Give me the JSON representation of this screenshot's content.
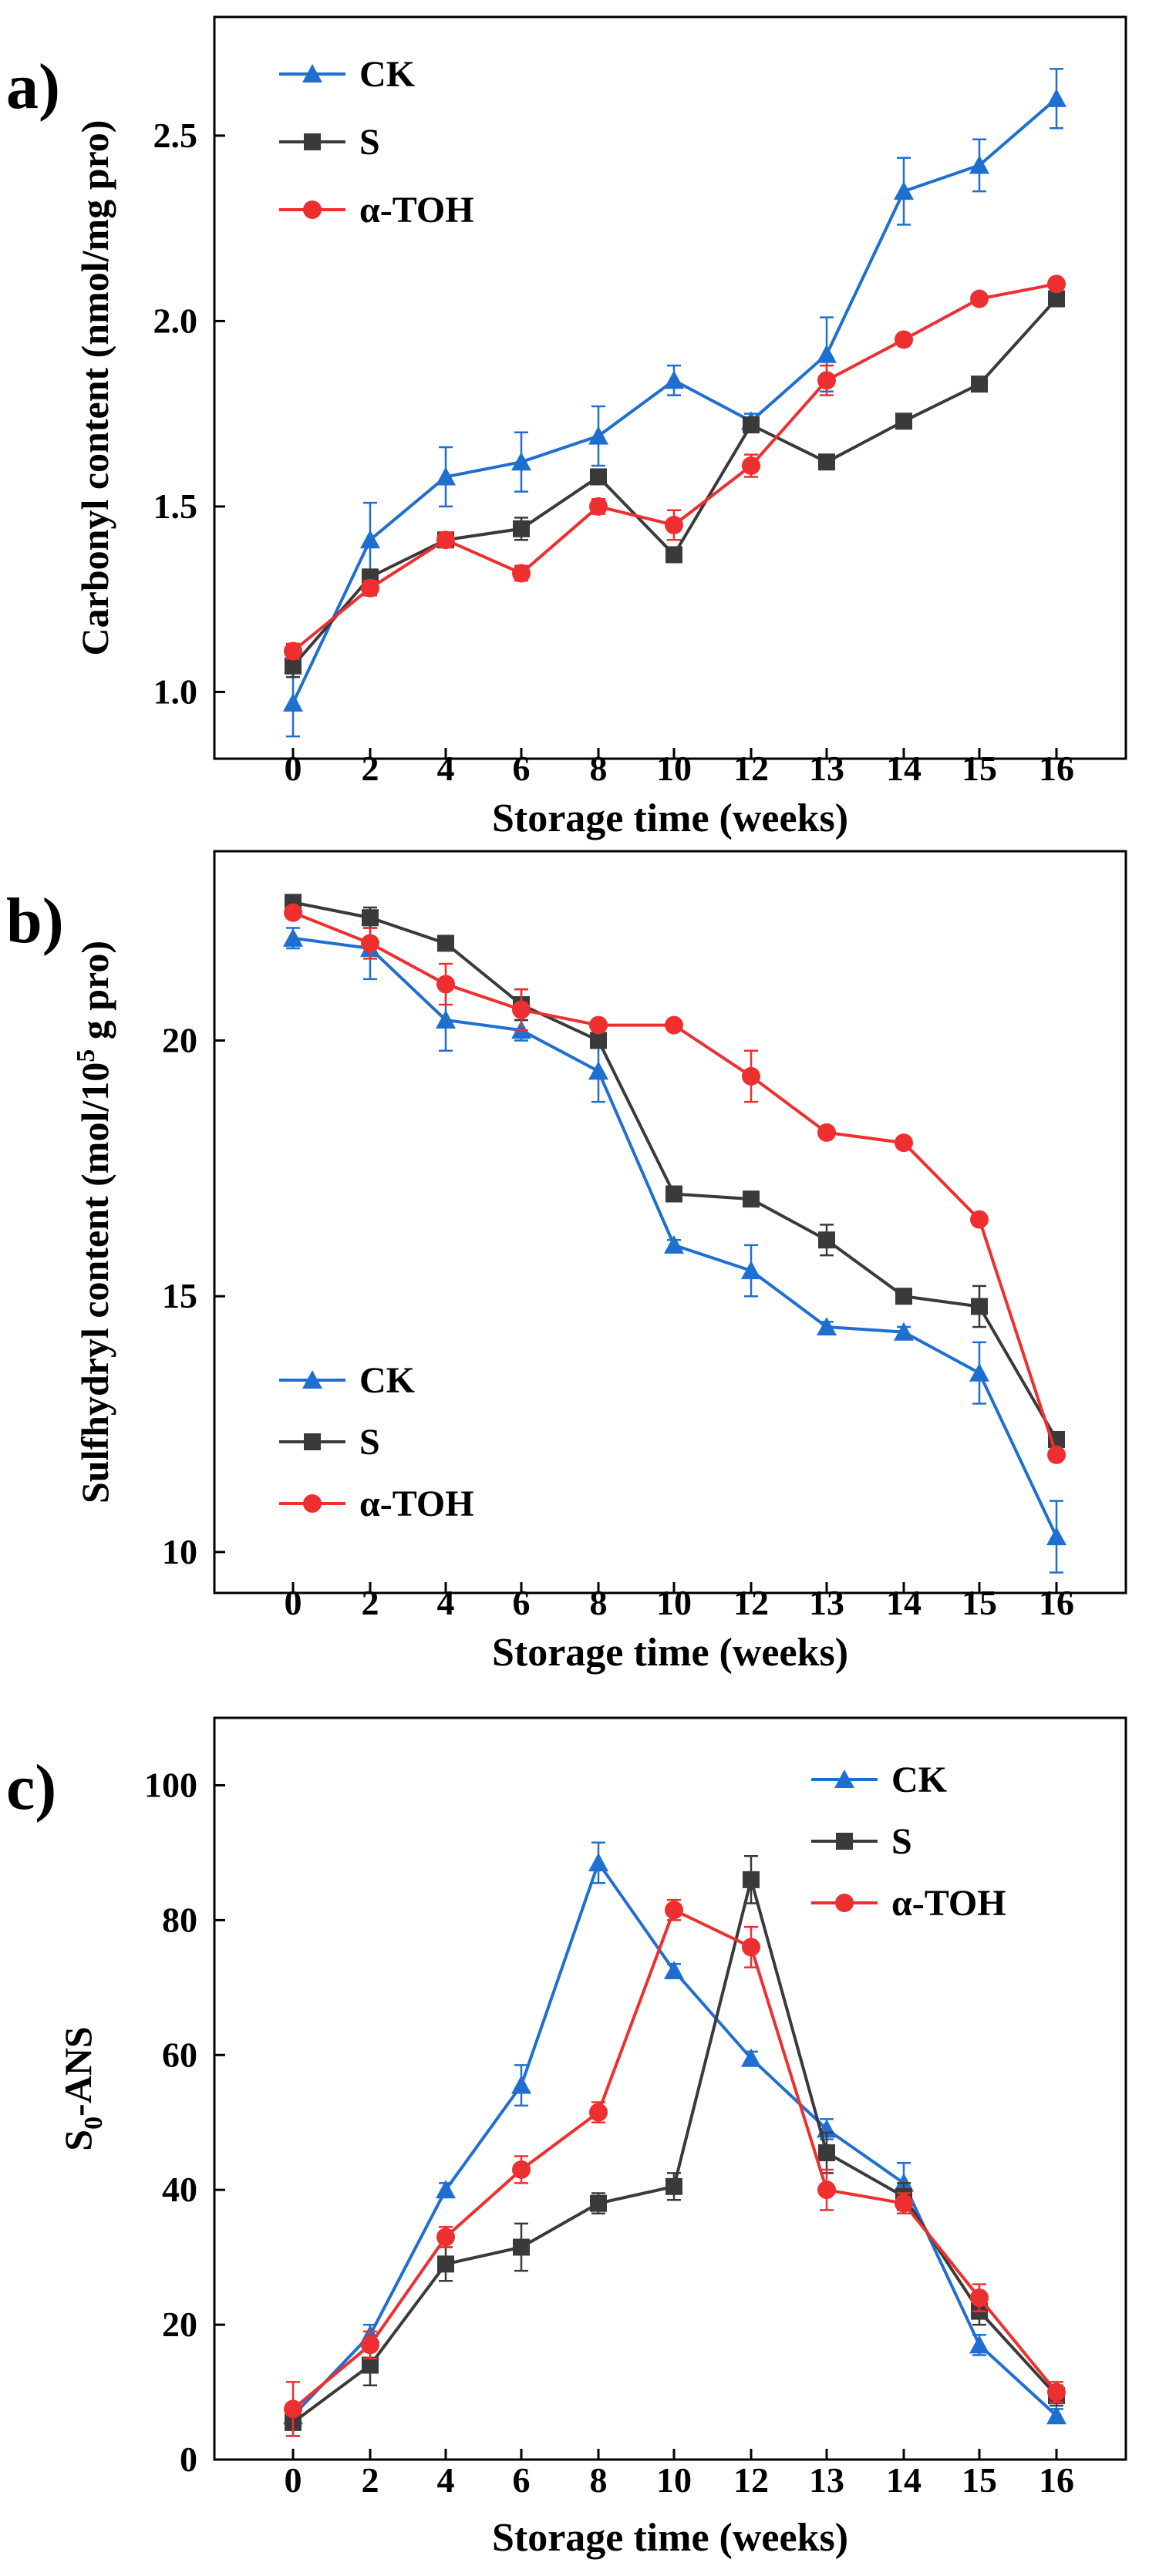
{
  "figure": {
    "colors": {
      "CK": "#1f6fd1",
      "S": "#3a3a3a",
      "a-TOH": "#ee2f2f"
    },
    "series_order": [
      "CK",
      "S",
      "α-TOH"
    ]
  },
  "chart_data": [
    {
      "panel_label": "a)",
      "type": "line",
      "x_ticks": [
        "0",
        "2",
        "4",
        "6",
        "8",
        "10",
        "12",
        "13",
        "14",
        "15",
        "16"
      ],
      "xlabel": "Storage time (weeks)",
      "ylabel": "Carbonyl content (nmol/mg pro)",
      "ylim": [
        0.82,
        2.82
      ],
      "y_ticks": [
        "1.0",
        "1.5",
        "2.0",
        "2.5"
      ],
      "legend_position": "top-left",
      "series": [
        {
          "name": "CK",
          "marker": "triangle",
          "color": "#1f6fd1",
          "values": [
            0.97,
            1.41,
            1.58,
            1.62,
            1.69,
            1.84,
            1.73,
            1.91,
            2.35,
            2.42,
            2.6
          ],
          "errors": [
            0.09,
            0.1,
            0.08,
            0.08,
            0.08,
            0.04,
            0.02,
            0.1,
            0.09,
            0.07,
            0.08
          ]
        },
        {
          "name": "S",
          "marker": "square",
          "color": "#3a3a3a",
          "values": [
            1.07,
            1.31,
            1.41,
            1.44,
            1.58,
            1.37,
            1.72,
            1.62,
            1.73,
            1.83,
            2.06
          ],
          "errors": [
            0.03,
            0.02,
            0.01,
            0.03,
            0.02,
            0.02,
            0.02,
            0.01,
            0.01,
            0.02,
            0.02
          ]
        },
        {
          "name": "α-TOH",
          "marker": "circle",
          "color": "#ee2f2f",
          "values": [
            1.11,
            1.28,
            1.41,
            1.32,
            1.5,
            1.45,
            1.61,
            1.84,
            1.95,
            2.06,
            2.1
          ],
          "errors": [
            0.02,
            0.02,
            0.02,
            0.02,
            0.02,
            0.04,
            0.03,
            0.04,
            0.01,
            0.01,
            0.01
          ]
        }
      ]
    },
    {
      "panel_label": "b)",
      "type": "line",
      "x_ticks": [
        "0",
        "2",
        "4",
        "6",
        "8",
        "10",
        "12",
        "13",
        "14",
        "15",
        "16"
      ],
      "xlabel": "Storage time (weeks)",
      "ylabel_prefix": "Sulfhydryl content (mol/10",
      "ylabel_sup": "5",
      "ylabel_suffix": " g pro)",
      "ylim": [
        9.2,
        23.7
      ],
      "y_ticks": [
        "10",
        "15",
        "20"
      ],
      "legend_position": "bottom-left",
      "series": [
        {
          "name": "CK",
          "marker": "triangle",
          "color": "#1f6fd1",
          "values": [
            22.0,
            21.8,
            20.4,
            20.2,
            19.4,
            16.0,
            15.5,
            14.4,
            14.3,
            13.5,
            10.3
          ],
          "errors": [
            0.2,
            0.6,
            0.6,
            0.2,
            0.6,
            0.1,
            0.5,
            0.1,
            0.1,
            0.6,
            0.7
          ]
        },
        {
          "name": "S",
          "marker": "square",
          "color": "#3a3a3a",
          "values": [
            22.7,
            22.4,
            21.9,
            20.7,
            20.0,
            17.0,
            16.9,
            16.1,
            15.0,
            14.8,
            12.2
          ],
          "errors": [
            0.1,
            0.2,
            0.1,
            0.3,
            0.1,
            0.1,
            0.1,
            0.3,
            0.1,
            0.4,
            0.1
          ]
        },
        {
          "name": "α-TOH",
          "marker": "circle",
          "color": "#ee2f2f",
          "values": [
            22.5,
            21.9,
            21.1,
            20.6,
            20.3,
            20.3,
            19.3,
            18.2,
            18.0,
            16.5,
            11.9
          ],
          "errors": [
            0.1,
            0.3,
            0.4,
            0.4,
            0.1,
            0.1,
            0.5,
            0.1,
            0.1,
            0.1,
            0.1
          ]
        }
      ]
    },
    {
      "panel_label": "c)",
      "type": "line",
      "x_ticks": [
        "0",
        "2",
        "4",
        "6",
        "8",
        "10",
        "12",
        "13",
        "14",
        "15",
        "16"
      ],
      "xlabel": "Storage time (weeks)",
      "ylabel_prefix": "S",
      "ylabel_sub": "0",
      "ylabel_suffix": "-ANS",
      "ylim": [
        0,
        110
      ],
      "y_ticks": [
        "0",
        "20",
        "40",
        "60",
        "80",
        "100"
      ],
      "legend_position": "top-right",
      "series": [
        {
          "name": "CK",
          "marker": "triangle",
          "color": "#1f6fd1",
          "values": [
            6.5,
            18.5,
            40.0,
            55.5,
            88.5,
            72.5,
            59.5,
            49.0,
            41.0,
            17.0,
            6.5
          ],
          "errors": [
            1.5,
            1.5,
            1.0,
            3.0,
            3.0,
            1.0,
            1.0,
            1.5,
            3.0,
            1.5,
            1.0
          ]
        },
        {
          "name": "S",
          "marker": "square",
          "color": "#3a3a3a",
          "values": [
            5.5,
            14.0,
            29.0,
            31.5,
            38.0,
            40.5,
            86.0,
            45.5,
            39.0,
            22.0,
            9.5
          ],
          "errors": [
            2.0,
            3.0,
            2.5,
            3.5,
            1.5,
            2.0,
            3.5,
            3.0,
            2.0,
            2.0,
            1.5
          ]
        },
        {
          "name": "α-TOH",
          "marker": "circle",
          "color": "#ee2f2f",
          "values": [
            7.5,
            17.0,
            33.0,
            43.0,
            51.5,
            81.5,
            76.0,
            40.0,
            38.0,
            24.0,
            10.0
          ],
          "errors": [
            4.0,
            2.0,
            1.5,
            2.0,
            1.5,
            1.5,
            3.0,
            3.0,
            1.5,
            2.0,
            1.5
          ]
        }
      ]
    }
  ]
}
